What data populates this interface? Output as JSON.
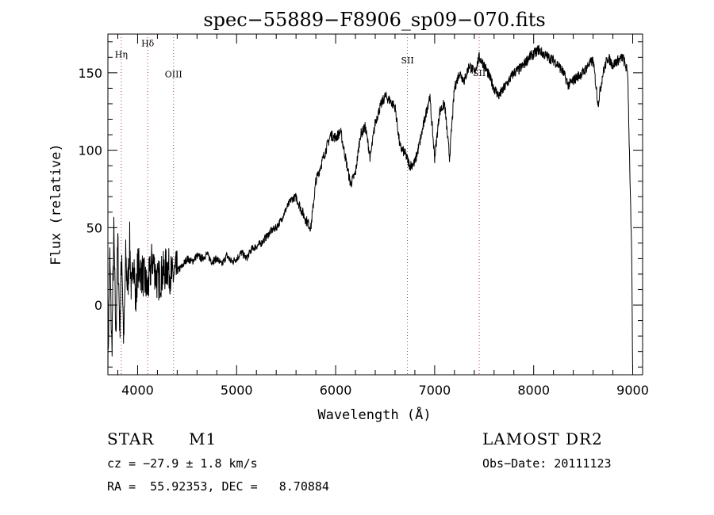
{
  "chart_data": {
    "type": "line",
    "title": "spec−55889−F8906_sp09−070.fits",
    "xlabel": "Wavelength (Å)",
    "ylabel": "Flux (relative)",
    "xlim": [
      3700,
      9100
    ],
    "ylim": [
      -45,
      175
    ],
    "x_ticks": [
      4000,
      5000,
      6000,
      7000,
      8000,
      9000
    ],
    "x_tick_labels": [
      "4000",
      "5000",
      "6000",
      "7000",
      "8000",
      "9000"
    ],
    "y_ticks": [
      0,
      50,
      100,
      150
    ],
    "y_tick_labels": [
      "0",
      "50",
      "100",
      "150"
    ],
    "grid": false,
    "line_color": "#000000",
    "marker_line_color": "#cc3333",
    "line_markers": [
      {
        "label": "Hη",
        "x": 3835,
        "label_y": 160
      },
      {
        "label": "Hδ",
        "x": 4102,
        "label_y": 167
      },
      {
        "label": "OIII",
        "x": 4363,
        "label_y": 147
      },
      {
        "label": "SII",
        "x": 6725,
        "label_y": 156
      },
      {
        "label": "SII",
        "x": 7450,
        "label_y": 148
      }
    ],
    "series": [
      {
        "x": [
          3700,
          3720,
          3740,
          3760,
          3780,
          3800,
          3820,
          3840,
          3860,
          3880,
          3900,
          3920,
          3940,
          3960,
          3980,
          4000,
          4050,
          4100,
          4150,
          4200,
          4250,
          4300,
          4350,
          4400,
          4450,
          4500,
          4550,
          4600,
          4650,
          4700,
          4750,
          4800,
          4850,
          4900,
          4950,
          5000,
          5050,
          5100,
          5150,
          5200,
          5250,
          5300,
          5350,
          5400,
          5450,
          5500,
          5550,
          5600,
          5650,
          5700,
          5750,
          5800,
          5850,
          5900,
          5950,
          6000,
          6050,
          6100,
          6150,
          6200,
          6250,
          6300,
          6350,
          6400,
          6450,
          6500,
          6550,
          6600,
          6650,
          6700,
          6750,
          6800,
          6850,
          6900,
          6950,
          7000,
          7050,
          7100,
          7150,
          7200,
          7250,
          7300,
          7350,
          7400,
          7450,
          7500,
          7550,
          7600,
          7650,
          7700,
          7750,
          7800,
          7850,
          7900,
          7950,
          8000,
          8050,
          8100,
          8150,
          8200,
          8250,
          8300,
          8350,
          8400,
          8450,
          8500,
          8550,
          8600,
          8650,
          8700,
          8750,
          8800,
          8850,
          8900,
          8950,
          8990,
          9000
        ],
        "y": [
          -40,
          30,
          -30,
          45,
          -20,
          40,
          -15,
          35,
          -25,
          30,
          10,
          40,
          5,
          35,
          0,
          25,
          20,
          10,
          30,
          15,
          20,
          25,
          18,
          22,
          25,
          30,
          28,
          32,
          30,
          33,
          28,
          30,
          26,
          32,
          28,
          30,
          34,
          30,
          36,
          38,
          40,
          44,
          48,
          50,
          55,
          62,
          68,
          70,
          62,
          55,
          50,
          80,
          90,
          100,
          110,
          108,
          112,
          95,
          78,
          85,
          110,
          115,
          95,
          118,
          128,
          135,
          132,
          128,
          102,
          98,
          90,
          92,
          105,
          120,
          135,
          95,
          125,
          130,
          95,
          140,
          150,
          145,
          155,
          150,
          160,
          155,
          148,
          140,
          135,
          140,
          145,
          150,
          152,
          155,
          160,
          162,
          165,
          162,
          160,
          158,
          155,
          150,
          142,
          145,
          148,
          150,
          155,
          158,
          130,
          150,
          160,
          155,
          158,
          160,
          150,
          30,
          -45
        ]
      }
    ]
  },
  "info": {
    "object_type": "STAR",
    "subclass": "M1",
    "survey": "LAMOST DR2",
    "redshift_line": "cz = −27.9 ± 1.8 km/s",
    "obs_date_line": "Obs−Date: 20111123",
    "coords_line": "RA =  55.92353, DEC =   8.70884"
  }
}
